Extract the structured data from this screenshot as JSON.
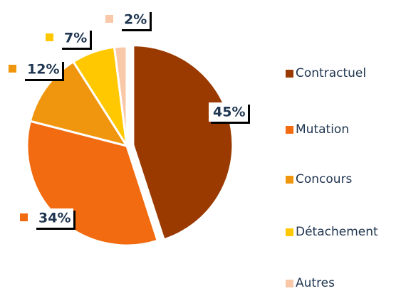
{
  "chart_data": {
    "type": "pie",
    "categories": [
      "Contractuel",
      "Mutation",
      "Concours",
      "Détachement",
      "Autres"
    ],
    "values": [
      45,
      34,
      12,
      7,
      2
    ],
    "value_labels": [
      "45%",
      "34%",
      "12%",
      "7%",
      "2%"
    ],
    "colors": [
      "#9a3a00",
      "#f26b10",
      "#f0960e",
      "#ffc800",
      "#f8c8a8"
    ],
    "legend": "right"
  }
}
